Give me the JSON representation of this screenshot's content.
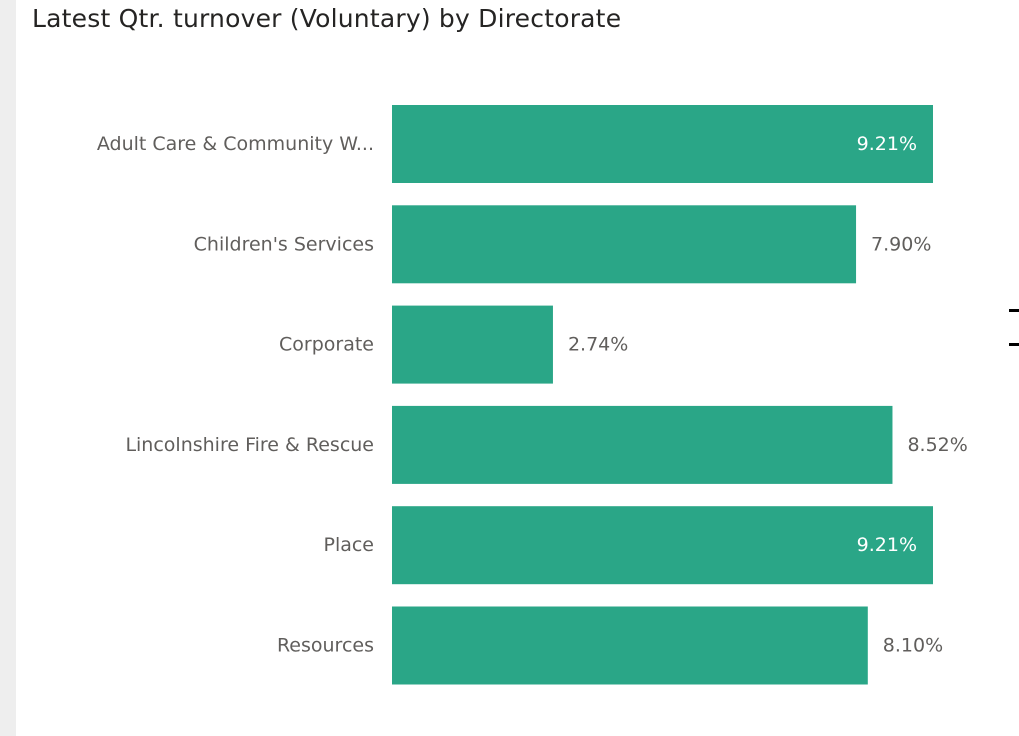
{
  "chart_data": {
    "type": "bar",
    "orientation": "horizontal",
    "title": "Latest Qtr. turnover (Voluntary) by Directorate",
    "categories": [
      "Adult Care & Community W...",
      "Children's Services",
      "Corporate",
      "Lincolnshire Fire & Rescue",
      "Place",
      "Resources"
    ],
    "values": [
      9.21,
      7.9,
      2.74,
      8.52,
      9.21,
      8.1
    ],
    "data_labels": [
      "9.21%",
      "7.90%",
      "2.74%",
      "8.52%",
      "9.21%",
      "8.10%"
    ],
    "xlim": [
      0,
      9.21
    ],
    "grid": false,
    "colors": {
      "bar": "#2aa687",
      "label_inside": "#ffffff",
      "label_outside": "#605e5c"
    }
  }
}
